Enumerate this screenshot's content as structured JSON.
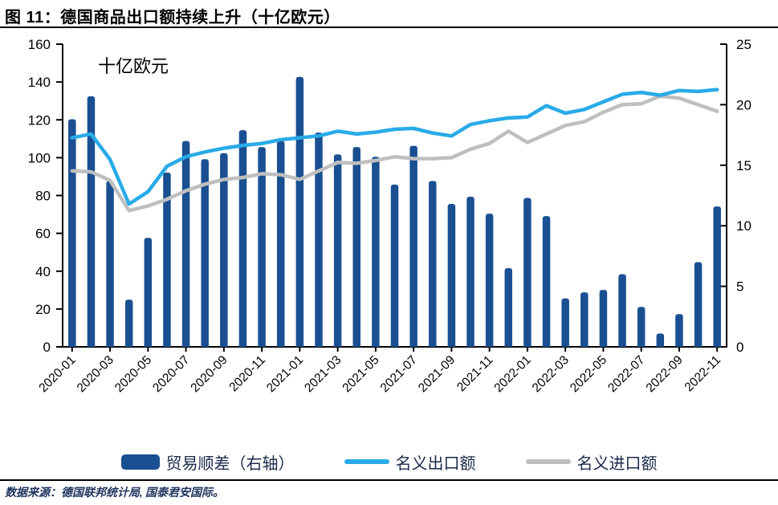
{
  "header": {
    "title": "图 11：德国商品出口额持续上升（十亿欧元）"
  },
  "chart_data": {
    "type": "bar",
    "subtype": "combo-bar-line-dual-axis",
    "title": "图 11：德国商品出口额持续上升（十亿欧元）",
    "annotation": "十亿欧元",
    "legend_position": "bottom",
    "grid": false,
    "categories": [
      "2020-01",
      "2020-02",
      "2020-03",
      "2020-04",
      "2020-05",
      "2020-06",
      "2020-07",
      "2020-08",
      "2020-09",
      "2020-10",
      "2020-11",
      "2020-12",
      "2021-01",
      "2021-02",
      "2021-03",
      "2021-04",
      "2021-05",
      "2021-06",
      "2021-07",
      "2021-08",
      "2021-09",
      "2021-10",
      "2021-11",
      "2021-12",
      "2022-01",
      "2022-02",
      "2022-03",
      "2022-04",
      "2022-05",
      "2022-06",
      "2022-07",
      "2022-08",
      "2022-09",
      "2022-10",
      "2022-11"
    ],
    "x_tick_labels": [
      "2020-01",
      "2020-03",
      "2020-05",
      "2020-07",
      "2020-09",
      "2020-11",
      "2021-01",
      "2021-03",
      "2021-05",
      "2021-07",
      "2021-09",
      "2021-11",
      "2022-01",
      "2022-03",
      "2022-05",
      "2022-07",
      "2022-09",
      "2022-11"
    ],
    "left_axis": {
      "min": 0,
      "max": 160,
      "step": 20
    },
    "right_axis": {
      "min": 0,
      "max": 25,
      "step": 5
    },
    "series": [
      {
        "name": "贸易顺差（右轴）",
        "type": "bar",
        "axis": "right",
        "color": "#1A5092",
        "values": [
          18.8,
          20.7,
          13.7,
          3.9,
          9.0,
          14.4,
          17.0,
          15.5,
          16.0,
          17.9,
          16.5,
          17.0,
          22.3,
          17.7,
          15.9,
          16.5,
          15.7,
          13.4,
          16.6,
          13.7,
          11.8,
          12.4,
          11.0,
          6.5,
          12.3,
          10.8,
          4.0,
          4.5,
          4.7,
          6.0,
          3.3,
          1.1,
          2.7,
          7.0,
          11.6
        ]
      },
      {
        "name": "名义出口额",
        "type": "line",
        "axis": "left",
        "color": "#29ABE8",
        "values": [
          110.5,
          112.5,
          99,
          75.5,
          82,
          95.5,
          100.5,
          103,
          105,
          106.5,
          107.5,
          109.5,
          110.5,
          111.5,
          114,
          112.5,
          113.5,
          115,
          115.5,
          113,
          111.5,
          117.5,
          119.5,
          121,
          121.5,
          127.5,
          123.5,
          125.5,
          129.5,
          133.5,
          134.5,
          133,
          135.5,
          135,
          136
        ]
      },
      {
        "name": "名义进口额",
        "type": "line",
        "axis": "left",
        "color": "#BFBFBF",
        "values": [
          93,
          92.5,
          88,
          72,
          74.5,
          78,
          82.5,
          86,
          88.5,
          89.5,
          91.5,
          91,
          88.5,
          93,
          97.5,
          97,
          98.5,
          100.5,
          99.5,
          99.5,
          100,
          104.5,
          107.5,
          114,
          108,
          112.5,
          117,
          119,
          124,
          128,
          128.5,
          132.5,
          131.5,
          128,
          124.5
        ]
      }
    ]
  },
  "footer": {
    "source": "数据来源：德国联邦统计局, 国泰君安国际。"
  }
}
